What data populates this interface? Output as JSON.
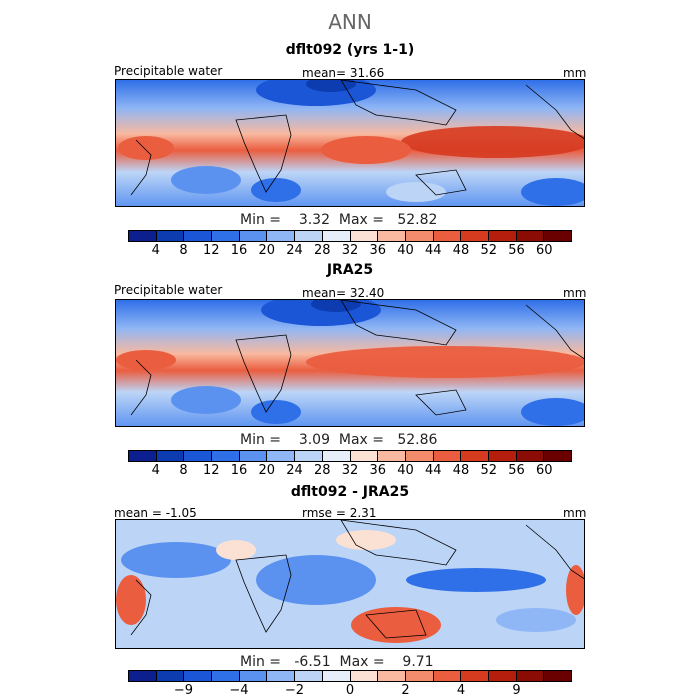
{
  "title": "ANN",
  "panels": [
    {
      "title": "dflt092 (yrs 1-1)",
      "left_label": "Precipitable water",
      "center_label": "mean=  31.66",
      "unit": "mm",
      "min_max": "Min =    3.32  Max =   52.82",
      "ticks": [
        "4",
        "8",
        "12",
        "16",
        "20",
        "24",
        "28",
        "32",
        "36",
        "40",
        "44",
        "48",
        "52",
        "56",
        "60"
      ],
      "colors": [
        "#0c1f8f",
        "#0d3bb0",
        "#1a56d6",
        "#2f6fe8",
        "#5b92f0",
        "#8fb6f5",
        "#bcd5f7",
        "#e6eefa",
        "#fbe0d4",
        "#f8b9a0",
        "#f38b6d",
        "#ea5d3f",
        "#d63a1f",
        "#b51e0d",
        "#8a0c05",
        "#6b0000"
      ]
    },
    {
      "title": "JRA25",
      "left_label": "Precipitable water",
      "center_label": "mean=  32.40",
      "unit": "mm",
      "min_max": "Min =    3.09  Max =   52.86",
      "ticks": [
        "4",
        "8",
        "12",
        "16",
        "20",
        "24",
        "28",
        "32",
        "36",
        "40",
        "44",
        "48",
        "52",
        "56",
        "60"
      ],
      "colors": [
        "#0c1f8f",
        "#0d3bb0",
        "#1a56d6",
        "#2f6fe8",
        "#5b92f0",
        "#8fb6f5",
        "#bcd5f7",
        "#e6eefa",
        "#fbe0d4",
        "#f8b9a0",
        "#f38b6d",
        "#ea5d3f",
        "#d63a1f",
        "#b51e0d",
        "#8a0c05",
        "#6b0000"
      ]
    },
    {
      "title": "dflt092 - JRA25",
      "left_label": "mean =  -1.05",
      "center_label": "rmse =   2.31",
      "unit": "mm",
      "min_max": "Min =   -6.51  Max =    9.71",
      "ticks": [
        "-9",
        "-4",
        "-2",
        "0",
        "2",
        "4",
        "9"
      ],
      "colors": [
        "#0c1f8f",
        "#0d3bb0",
        "#1a56d6",
        "#2f6fe8",
        "#5b92f0",
        "#8fb6f5",
        "#bcd5f7",
        "#e6eefa",
        "#fbe0d4",
        "#f8b9a0",
        "#f38b6d",
        "#ea5d3f",
        "#d63a1f",
        "#b51e0d",
        "#8a0c05",
        "#6b0000"
      ]
    }
  ]
}
